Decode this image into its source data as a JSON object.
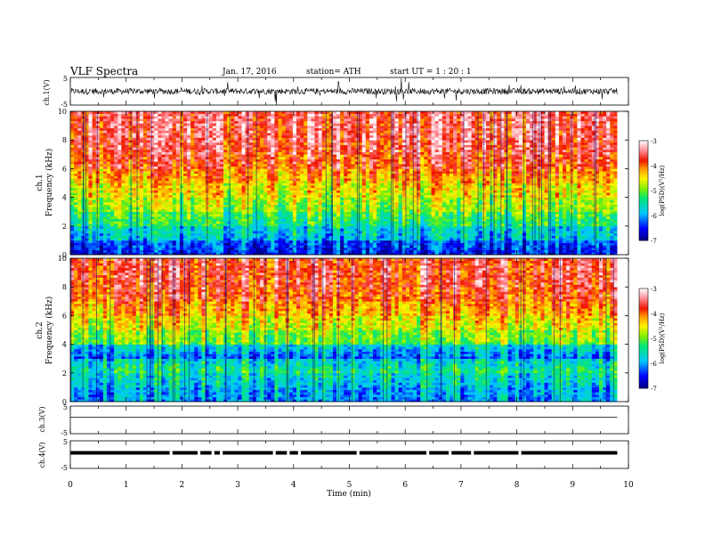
{
  "header": {
    "title": "VLF  Spectra",
    "date": "Jan. 17, 2016",
    "station": "station= ATH",
    "start": "start  UT  =   1  : 20 : 1"
  },
  "chart_data": [
    {
      "type": "line",
      "panel": "ch1-waveform",
      "ylabel": "ch.1(V)",
      "ylim": [
        -5,
        5
      ],
      "ytick_labels": [
        "5",
        "-5"
      ],
      "xlim": [
        0,
        10
      ],
      "data_end": 9.8,
      "x": [
        0,
        1,
        2,
        3,
        4,
        5,
        6,
        7,
        8,
        9,
        9.8
      ],
      "y": [
        0.2,
        0,
        0.1,
        -0.2,
        0,
        0.1,
        0,
        -0.1,
        0,
        0.1,
        0
      ]
    },
    {
      "type": "heatmap",
      "panel": "ch1-spectrogram",
      "ylabel": "Frequency  (kHz)",
      "ylabel_channel": "ch.1",
      "xlim": [
        0,
        10
      ],
      "ylim": [
        0,
        10
      ],
      "yticks": [
        0,
        2,
        4,
        6,
        8,
        10
      ],
      "ytick_labels": [
        "0",
        "2",
        "4",
        "6",
        "8",
        "10"
      ],
      "freq_bands": [
        0,
        1,
        2,
        3,
        4,
        5,
        6,
        7,
        8,
        9,
        10
      ],
      "log_psd_profile": [
        -6.6,
        -5.9,
        -5.4,
        -4.9,
        -4.6,
        -4.3,
        -3.9,
        -3.7,
        -3.6,
        -3.6
      ],
      "colorbar": {
        "label": "log(PSD)(V²/Hz)",
        "range": [
          -7,
          -3
        ],
        "ticks": [
          "-3",
          "-4",
          "-5",
          "-6",
          "-7"
        ]
      }
    },
    {
      "type": "heatmap",
      "panel": "ch2-spectrogram",
      "ylabel": "Frequency  (kHz)",
      "ylabel_channel": "ch.2",
      "xlim": [
        0,
        10
      ],
      "ylim": [
        0,
        10
      ],
      "yticks": [
        0,
        2,
        4,
        6,
        8,
        10
      ],
      "ytick_labels": [
        "0",
        "2",
        "4",
        "6",
        "8",
        "10"
      ],
      "freq_bands": [
        0,
        1,
        2,
        3,
        4,
        5,
        6,
        7,
        8,
        9,
        10
      ],
      "log_psd_profile": [
        -6.0,
        -5.8,
        -5.3,
        -6.2,
        -5.0,
        -4.6,
        -4.2,
        -3.9,
        -3.7,
        -3.7
      ],
      "colorbar": {
        "label": "log(PSD)(V²/Hz)",
        "range": [
          -7,
          -3
        ],
        "ticks": [
          "-3",
          "-4",
          "-5",
          "-6",
          "-7"
        ]
      }
    },
    {
      "type": "line",
      "panel": "ch3-waveform",
      "ylabel": "ch.3(V)",
      "ylim": [
        -5,
        5
      ],
      "ytick_labels": [
        "5",
        "-5"
      ],
      "xlim": [
        0,
        10
      ],
      "x": [
        0,
        9.8
      ],
      "y": [
        0,
        0
      ]
    },
    {
      "type": "line",
      "panel": "ch4-waveform",
      "ylabel": "ch.4(V)",
      "ylim": [
        -5,
        5
      ],
      "ytick_labels": [
        "5",
        "-5"
      ],
      "xlim": [
        0,
        10
      ],
      "x": [
        0,
        9.8
      ],
      "y": [
        0,
        0
      ],
      "gaps": [
        1.8,
        2.3,
        2.55,
        2.7,
        3.65,
        3.9,
        4.1,
        5.15,
        6.4,
        6.8,
        7.2,
        8.05
      ]
    },
    {
      "type": "axis",
      "panel": "time-axis",
      "xlabel": "Time  (min)",
      "xticks": [
        0,
        1,
        2,
        3,
        4,
        5,
        6,
        7,
        8,
        9,
        10
      ],
      "xtick_labels": [
        "0",
        "1",
        "2",
        "3",
        "4",
        "5",
        "6",
        "7",
        "8",
        "9",
        "10"
      ]
    }
  ]
}
